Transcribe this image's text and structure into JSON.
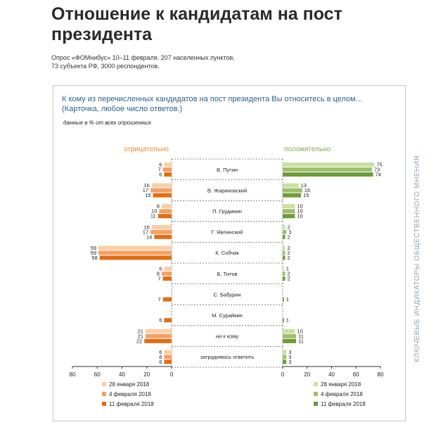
{
  "page": {
    "title": "Отношение к кандидатам на пост президента",
    "subtitle_line1": "Опрос «ФОМнибус» 10–11 февраля. 207 населенных пунктов,",
    "subtitle_line2": "73 субъекта РФ, 3000 респондентов.",
    "side_text": "КЛЮЧЕВЫЕ ИНДИКАТОРЫ ОБЩЕСТВЕННОГО МНЕНИЯ"
  },
  "chart_data": {
    "type": "bar",
    "orientation": "horizontal",
    "title": "К кому из перечисленных кандидатов на пост президента Вы относитесь в целом... (Карточка, любое число ответов.)",
    "unit_note": "данные в % от всех опрошенных",
    "left_panel_label": "отрицательно",
    "right_panel_label": "положительно",
    "categories": [
      "В. Путин",
      "В. Жириновский",
      "П. Грудинин",
      "Г. Явлинский",
      "К. Собчак",
      "Б. Титов",
      "С. Бабурин",
      "М. Сурайкин",
      "ни к кому",
      "затрудняюсь ответить"
    ],
    "axis_ticks": [
      80,
      60,
      40,
      20,
      0
    ],
    "xlim": [
      0,
      80
    ],
    "dates": [
      "28 января 2018",
      "4 февраля 2018",
      "11 февраля 2018"
    ],
    "negative": [
      [
        6,
        7,
        6
      ],
      [
        16,
        17,
        15
      ],
      [
        8,
        10,
        11
      ],
      [
        16,
        17,
        14
      ],
      [
        59,
        59,
        58
      ],
      [
        6,
        8,
        7
      ],
      [
        null,
        null,
        7
      ],
      [
        null,
        null,
        6
      ],
      [
        21,
        21,
        22
      ],
      [
        6,
        6,
        6
      ]
    ],
    "positive": [
      [
        75,
        73,
        74
      ],
      [
        13,
        16,
        15
      ],
      [
        10,
        10,
        10
      ],
      [
        2,
        3,
        2
      ],
      [
        2,
        2,
        2
      ],
      [
        1,
        2,
        2
      ],
      [
        null,
        null,
        1
      ],
      [
        null,
        null,
        1
      ],
      [
        10,
        11,
        11
      ],
      [
        3,
        3,
        3
      ]
    ],
    "negative_colors": [
      "#f9cfa6",
      "#f4a064",
      "#e26d12"
    ],
    "positive_colors": [
      "#c9e0a5",
      "#9cc06a",
      "#6f9a3b"
    ],
    "label_colors": {
      "negative": "#e88b2c",
      "positive": "#7ea94a"
    },
    "grid": false,
    "legend_position": "bottom"
  }
}
